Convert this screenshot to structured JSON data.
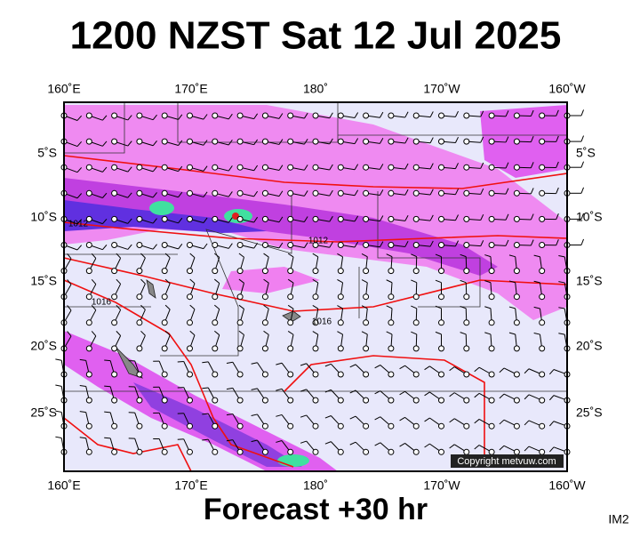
{
  "header": {
    "title": "1200 NZST Sat 12 Jul 2025"
  },
  "map": {
    "lon_labels": [
      "160˚E",
      "170˚E",
      "180˚",
      "170˚W",
      "160˚W"
    ],
    "lat_labels": [
      "5˚S",
      "10˚S",
      "15˚S",
      "20˚S",
      "25˚S"
    ],
    "isobar_labels": [
      "1012",
      "1012",
      "1016",
      "1016"
    ],
    "copyright": "Copyright metvuw.com"
  },
  "footer": {
    "caption": "Forecast +30 hr",
    "code": "IM2"
  }
}
